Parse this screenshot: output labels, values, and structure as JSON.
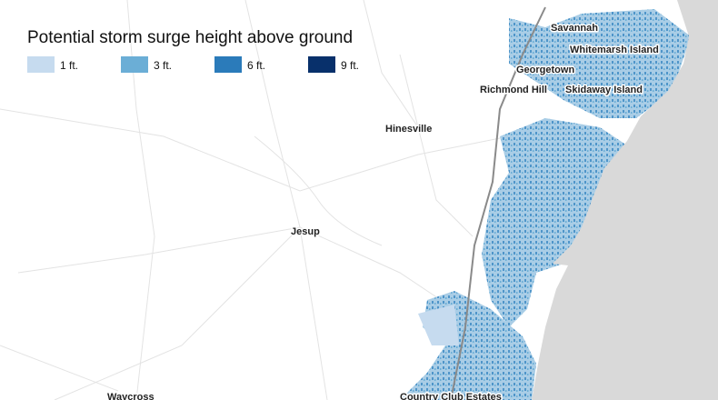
{
  "legend": {
    "title": "Potential storm surge height above ground",
    "items": [
      {
        "label": "1 ft.",
        "color": "#c6dbef"
      },
      {
        "label": "3 ft.",
        "color": "#6baed6"
      },
      {
        "label": "6 ft.",
        "color": "#2b7bba"
      },
      {
        "label": "9 ft.",
        "color": "#08306b"
      }
    ]
  },
  "places": [
    {
      "name": "Savannah"
    },
    {
      "name": "Whitemarsh Island"
    },
    {
      "name": "Georgetown"
    },
    {
      "name": "Richmond Hill"
    },
    {
      "name": "Skidaway Island"
    },
    {
      "name": "Hinesville"
    },
    {
      "name": "Jesup"
    },
    {
      "name": "Waycross"
    },
    {
      "name": "Country Club Estates"
    }
  ]
}
